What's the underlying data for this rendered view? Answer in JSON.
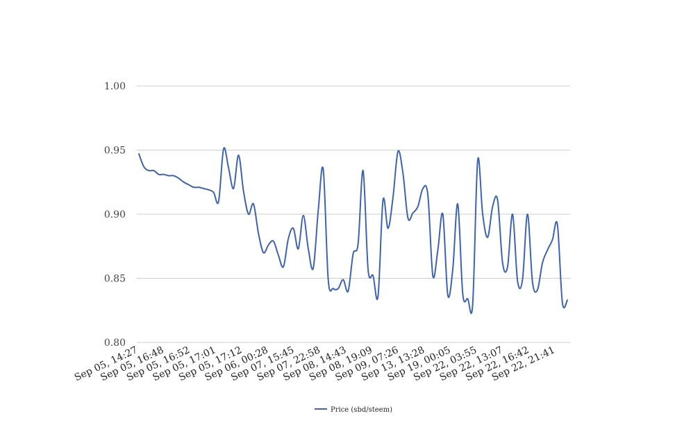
{
  "chart_data": {
    "type": "line",
    "title": "",
    "xlabel": "",
    "ylabel": "",
    "ylim": [
      0.8,
      1.0
    ],
    "y_ticks": [
      "0.80",
      "0.85",
      "0.90",
      "0.95",
      "1.00"
    ],
    "grid": "horizontal",
    "legend_position": "bottom",
    "x_tick_labels": [
      "Sep 05, 14:27",
      "Sep 05, 16:48",
      "Sep 05, 16:52",
      "Sep 05, 17:01",
      "Sep 05, 17:12",
      "Sep 06, 00:28",
      "Sep 07, 15:45",
      "Sep 07, 22:58",
      "Sep 08, 14:43",
      "Sep 08, 19:09",
      "Sep 09, 07:26",
      "Sep 13, 13:28",
      "Sep 19, 00:05",
      "Sep 22, 03:55",
      "Sep 22, 13:07",
      "Sep 22, 16:42",
      "Sep 22, 21:41"
    ],
    "series": [
      {
        "name": "Price (sbd/steem)",
        "color": "#3b63b5",
        "values": [
          0.947,
          0.937,
          0.934,
          0.934,
          0.931,
          0.931,
          0.93,
          0.93,
          0.928,
          0.925,
          0.923,
          0.921,
          0.921,
          0.92,
          0.919,
          0.917,
          0.91,
          0.951,
          0.936,
          0.92,
          0.946,
          0.918,
          0.9,
          0.908,
          0.885,
          0.87,
          0.876,
          0.879,
          0.868,
          0.859,
          0.881,
          0.889,
          0.873,
          0.899,
          0.873,
          0.858,
          0.903,
          0.935,
          0.849,
          0.842,
          0.842,
          0.849,
          0.84,
          0.869,
          0.877,
          0.934,
          0.857,
          0.852,
          0.836,
          0.911,
          0.889,
          0.913,
          0.949,
          0.932,
          0.897,
          0.901,
          0.906,
          0.92,
          0.915,
          0.852,
          0.872,
          0.9,
          0.837,
          0.857,
          0.908,
          0.838,
          0.834,
          0.83,
          0.942,
          0.9,
          0.882,
          0.906,
          0.911,
          0.862,
          0.859,
          0.9,
          0.848,
          0.849,
          0.9,
          0.847,
          0.841,
          0.862,
          0.872,
          0.88,
          0.892,
          0.831,
          0.833
        ]
      }
    ]
  }
}
